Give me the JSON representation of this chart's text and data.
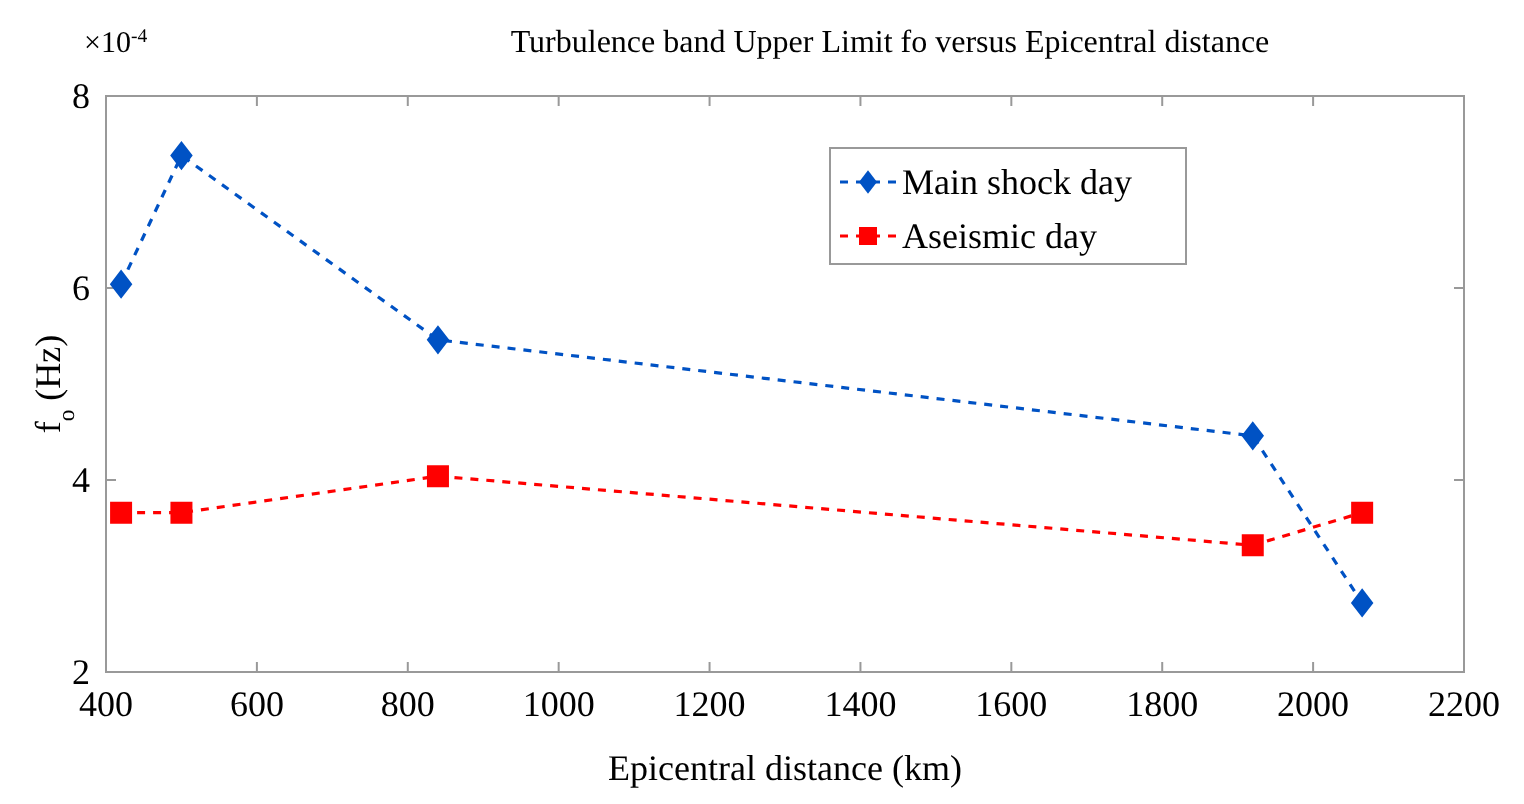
{
  "chart_data": {
    "type": "line",
    "title": "Turbulence band Upper Limit fo versus Epicentral distance",
    "xlabel": "Epicentral distance (km)",
    "ylabel": "f$_{o}$ (Hz)",
    "annotations": [
      "×10$^{-4}$"
    ],
    "x": [
      420,
      500,
      840,
      1920,
      2065
    ],
    "series": [
      {
        "name": "Main shock day",
        "color": "#0052c4",
        "marker": "diamond",
        "values": [
          6.04,
          7.38,
          5.46,
          4.46,
          2.72
        ]
      },
      {
        "name": "Aseismic day",
        "color": "#ff0000",
        "marker": "square",
        "values": [
          3.66,
          3.66,
          4.04,
          3.32,
          3.66
        ]
      }
    ],
    "line_style": "dashed",
    "xlim": [
      400,
      2200
    ],
    "xticks": [
      400,
      600,
      800,
      1000,
      1200,
      1400,
      1600,
      1800,
      2000,
      2200
    ],
    "ylim": [
      2,
      8
    ],
    "yticks": [
      2,
      4,
      6,
      8
    ],
    "grid": false,
    "legend": "top"
  }
}
